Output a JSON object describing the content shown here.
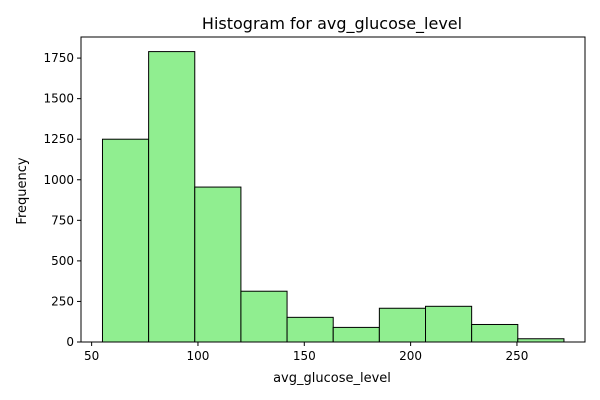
{
  "chart_data": {
    "type": "bar",
    "title": "Histogram for avg_glucose_level",
    "xlabel": "avg_glucose_level",
    "ylabel": "Frequency",
    "xlim": [
      45,
      282
    ],
    "ylim": [
      0,
      1880
    ],
    "x_ticks": [
      50,
      100,
      150,
      200,
      250
    ],
    "y_ticks": [
      0,
      250,
      500,
      750,
      1000,
      1250,
      1500,
      1750
    ],
    "bins": [
      {
        "x0": 55.1,
        "x1": 76.8,
        "value": 1250
      },
      {
        "x0": 76.8,
        "x1": 98.5,
        "value": 1790
      },
      {
        "x0": 98.5,
        "x1": 120.2,
        "value": 955
      },
      {
        "x0": 120.2,
        "x1": 141.9,
        "value": 313
      },
      {
        "x0": 141.9,
        "x1": 163.6,
        "value": 152
      },
      {
        "x0": 163.6,
        "x1": 185.3,
        "value": 90
      },
      {
        "x0": 185.3,
        "x1": 207.0,
        "value": 208
      },
      {
        "x0": 207.0,
        "x1": 228.7,
        "value": 220
      },
      {
        "x0": 228.7,
        "x1": 250.4,
        "value": 108
      },
      {
        "x0": 250.4,
        "x1": 272.1,
        "value": 20
      }
    ],
    "bar_color": "#90ee90",
    "edge_color": "#000000",
    "grid": false,
    "legend": "none"
  }
}
